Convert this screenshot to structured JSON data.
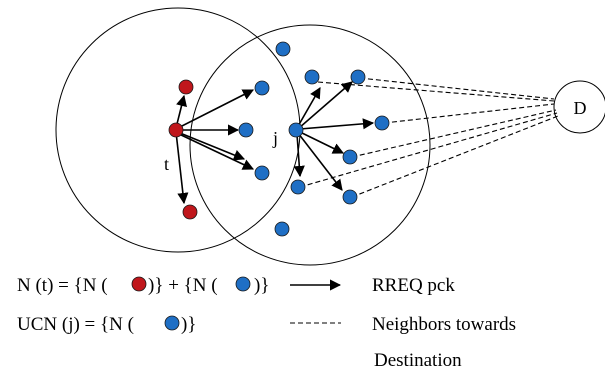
{
  "nodes": {
    "t_label": "t",
    "j_label": "j",
    "destination_label": "D"
  },
  "legend": {
    "nt_prefix": "N (t) = {N (",
    "nt_middle": ")} + {N (",
    "nt_suffix": ")}",
    "ucn_prefix": "UCN (j) = {N (",
    "ucn_suffix": ")}",
    "arrow_meaning": "RREQ pck",
    "dashed_meaning_line1": "Neighbors towards",
    "dashed_meaning_line2": "Destination"
  },
  "colors": {
    "red_node": "#c0171c",
    "blue_node": "#1f6fc5",
    "node_outline": "#1a1a1a",
    "line": "#000000"
  },
  "icons": {
    "solid_arrow": "arrow-right-icon",
    "dashed_line": "dashed-line-icon"
  }
}
